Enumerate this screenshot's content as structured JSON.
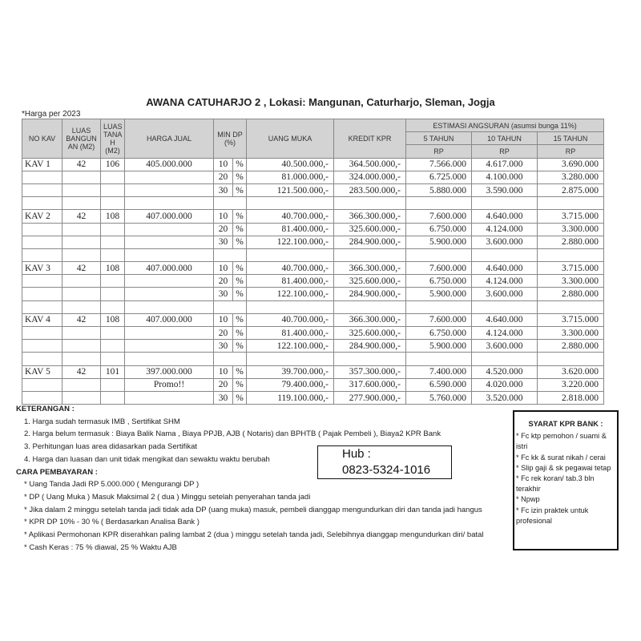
{
  "title": "AWANA CATUHARJO 2 , Lokasi: Mangunan, Caturharjo, Sleman, Jogja",
  "note": "*Harga per 2023",
  "headers": {
    "no_kav": "NO KAV",
    "luas_bangunan": "LUAS BANGUN AN (M2)",
    "luas_tanah": "LUAS TANA H (M2)",
    "harga_jual": "HARGA JUAL",
    "min_dp": "MIN DP (%)",
    "uang_muka": "UANG MUKA",
    "kredit_kpr": "KREDIT KPR",
    "estimasi": "ESTIMASI ANGSURAN (asumsi bunga 11%)",
    "y5": "5 TAHUN",
    "y10": "10 TAHUN",
    "y15": "15 TAHUN",
    "rp": "RP"
  },
  "kavs": [
    {
      "name": "KAV 1",
      "lb": "42",
      "lt": "106",
      "harga": "405.000.000",
      "note": "",
      "rows": [
        [
          "10",
          "%",
          "40.500.000,-",
          "364.500.000,-",
          "7.566.000",
          "4.617.000",
          "3.690.000"
        ],
        [
          "20",
          "%",
          "81.000.000,-",
          "324.000.000,-",
          "6.725.000",
          "4.100.000",
          "3.280.000"
        ],
        [
          "30",
          "%",
          "121.500.000,-",
          "283.500.000,-",
          "5.880.000",
          "3.590.000",
          "2.875.000"
        ]
      ]
    },
    {
      "name": "KAV 2",
      "lb": "42",
      "lt": "108",
      "harga": "407.000.000",
      "note": "",
      "rows": [
        [
          "10",
          "%",
          "40.700.000,-",
          "366.300.000,-",
          "7.600.000",
          "4.640.000",
          "3.715.000"
        ],
        [
          "20",
          "%",
          "81.400.000,-",
          "325.600.000,-",
          "6.750.000",
          "4.124.000",
          "3.300.000"
        ],
        [
          "30",
          "%",
          "122.100.000,-",
          "284.900.000,-",
          "5.900.000",
          "3.600.000",
          "2.880.000"
        ]
      ]
    },
    {
      "name": "KAV 3",
      "lb": "42",
      "lt": "108",
      "harga": "407.000.000",
      "note": "",
      "rows": [
        [
          "10",
          "%",
          "40.700.000,-",
          "366.300.000,-",
          "7.600.000",
          "4.640.000",
          "3.715.000"
        ],
        [
          "20",
          "%",
          "81.400.000,-",
          "325.600.000,-",
          "6.750.000",
          "4.124.000",
          "3.300.000"
        ],
        [
          "30",
          "%",
          "122.100.000,-",
          "284.900.000,-",
          "5.900.000",
          "3.600.000",
          "2.880.000"
        ]
      ]
    },
    {
      "name": "KAV 4",
      "lb": "42",
      "lt": "108",
      "harga": "407.000.000",
      "note": "",
      "rows": [
        [
          "10",
          "%",
          "40.700.000,-",
          "366.300.000,-",
          "7.600.000",
          "4.640.000",
          "3.715.000"
        ],
        [
          "20",
          "%",
          "81.400.000,-",
          "325.600.000,-",
          "6.750.000",
          "4.124.000",
          "3.300.000"
        ],
        [
          "30",
          "%",
          "122.100.000,-",
          "284.900.000,-",
          "5.900.000",
          "3.600.000",
          "2.880.000"
        ]
      ]
    },
    {
      "name": "KAV 5",
      "lb": "42",
      "lt": "101",
      "harga": "397.000.000",
      "note": "Promo!!",
      "rows": [
        [
          "10",
          "%",
          "39.700.000,-",
          "357.300.000,-",
          "7.400.000",
          "4.520.000",
          "3.620.000"
        ],
        [
          "20",
          "%",
          "79.400.000,-",
          "317.600.000,-",
          "6.590.000",
          "4.020.000",
          "3.220.000"
        ],
        [
          "30",
          "%",
          "119.100.000,-",
          "277.900.000,-",
          "5.760.000",
          "3.520.000",
          "2.818.000"
        ]
      ]
    }
  ],
  "keterangan": {
    "heading": "KETERANGAN :",
    "items": [
      "1. Harga sudah termasuk IMB , Sertifikat SHM",
      "2. Harga belum termasuk : Biaya Balik Nama , Biaya PPJB, AJB ( Notaris) dan BPHTB ( Pajak Pembeli ), Biaya2 KPR Bank",
      "3. Perhitungan luas area didasarkan pada Sertifikat",
      "4. Harga dan luasan dan unit tidak mengikat dan sewaktu waktu berubah"
    ]
  },
  "pembayaran": {
    "heading": "CARA PEMBAYARAN :",
    "items": [
      "* Uang Tanda Jadi RP 5.000.000 ( Mengurangi DP )",
      "* DP ( Uang Muka ) Masuk  Maksimal 2 ( dua ) Minggu  setelah penyerahan tanda jadi",
      "* Jika dalam 2 minggu setelah tanda jadi tidak ada DP (uang muka) masuk, pembeli dianggap mengundurkan diri dan tanda jadi hangus",
      "* KPR DP 10% - 30 % ( Berdasarkan Analisa Bank )",
      "* Aplikasi Permohonan KPR diserahkan paling lambat 2 (dua ) minggu setelah tanda jadi, Selebihnya dianggap mengundurkan diri/ batal",
      "* Cash Keras : 75 % diawal, 25 % Waktu AJB"
    ]
  },
  "hub": {
    "label": "Hub :",
    "phone": "0823-5324-1016"
  },
  "syarat": {
    "heading": "SYARAT KPR BANK :",
    "items": [
      "* Fc ktp pemohon / suami  & istri",
      "* Fc kk & surat nikah / cerai",
      "* Slip gaji & sk pegawai tetap",
      "* Fc rek koran/ tab.3 bln terakhir",
      "* Npwp",
      "* Fc izin praktek untuk profesional"
    ]
  }
}
